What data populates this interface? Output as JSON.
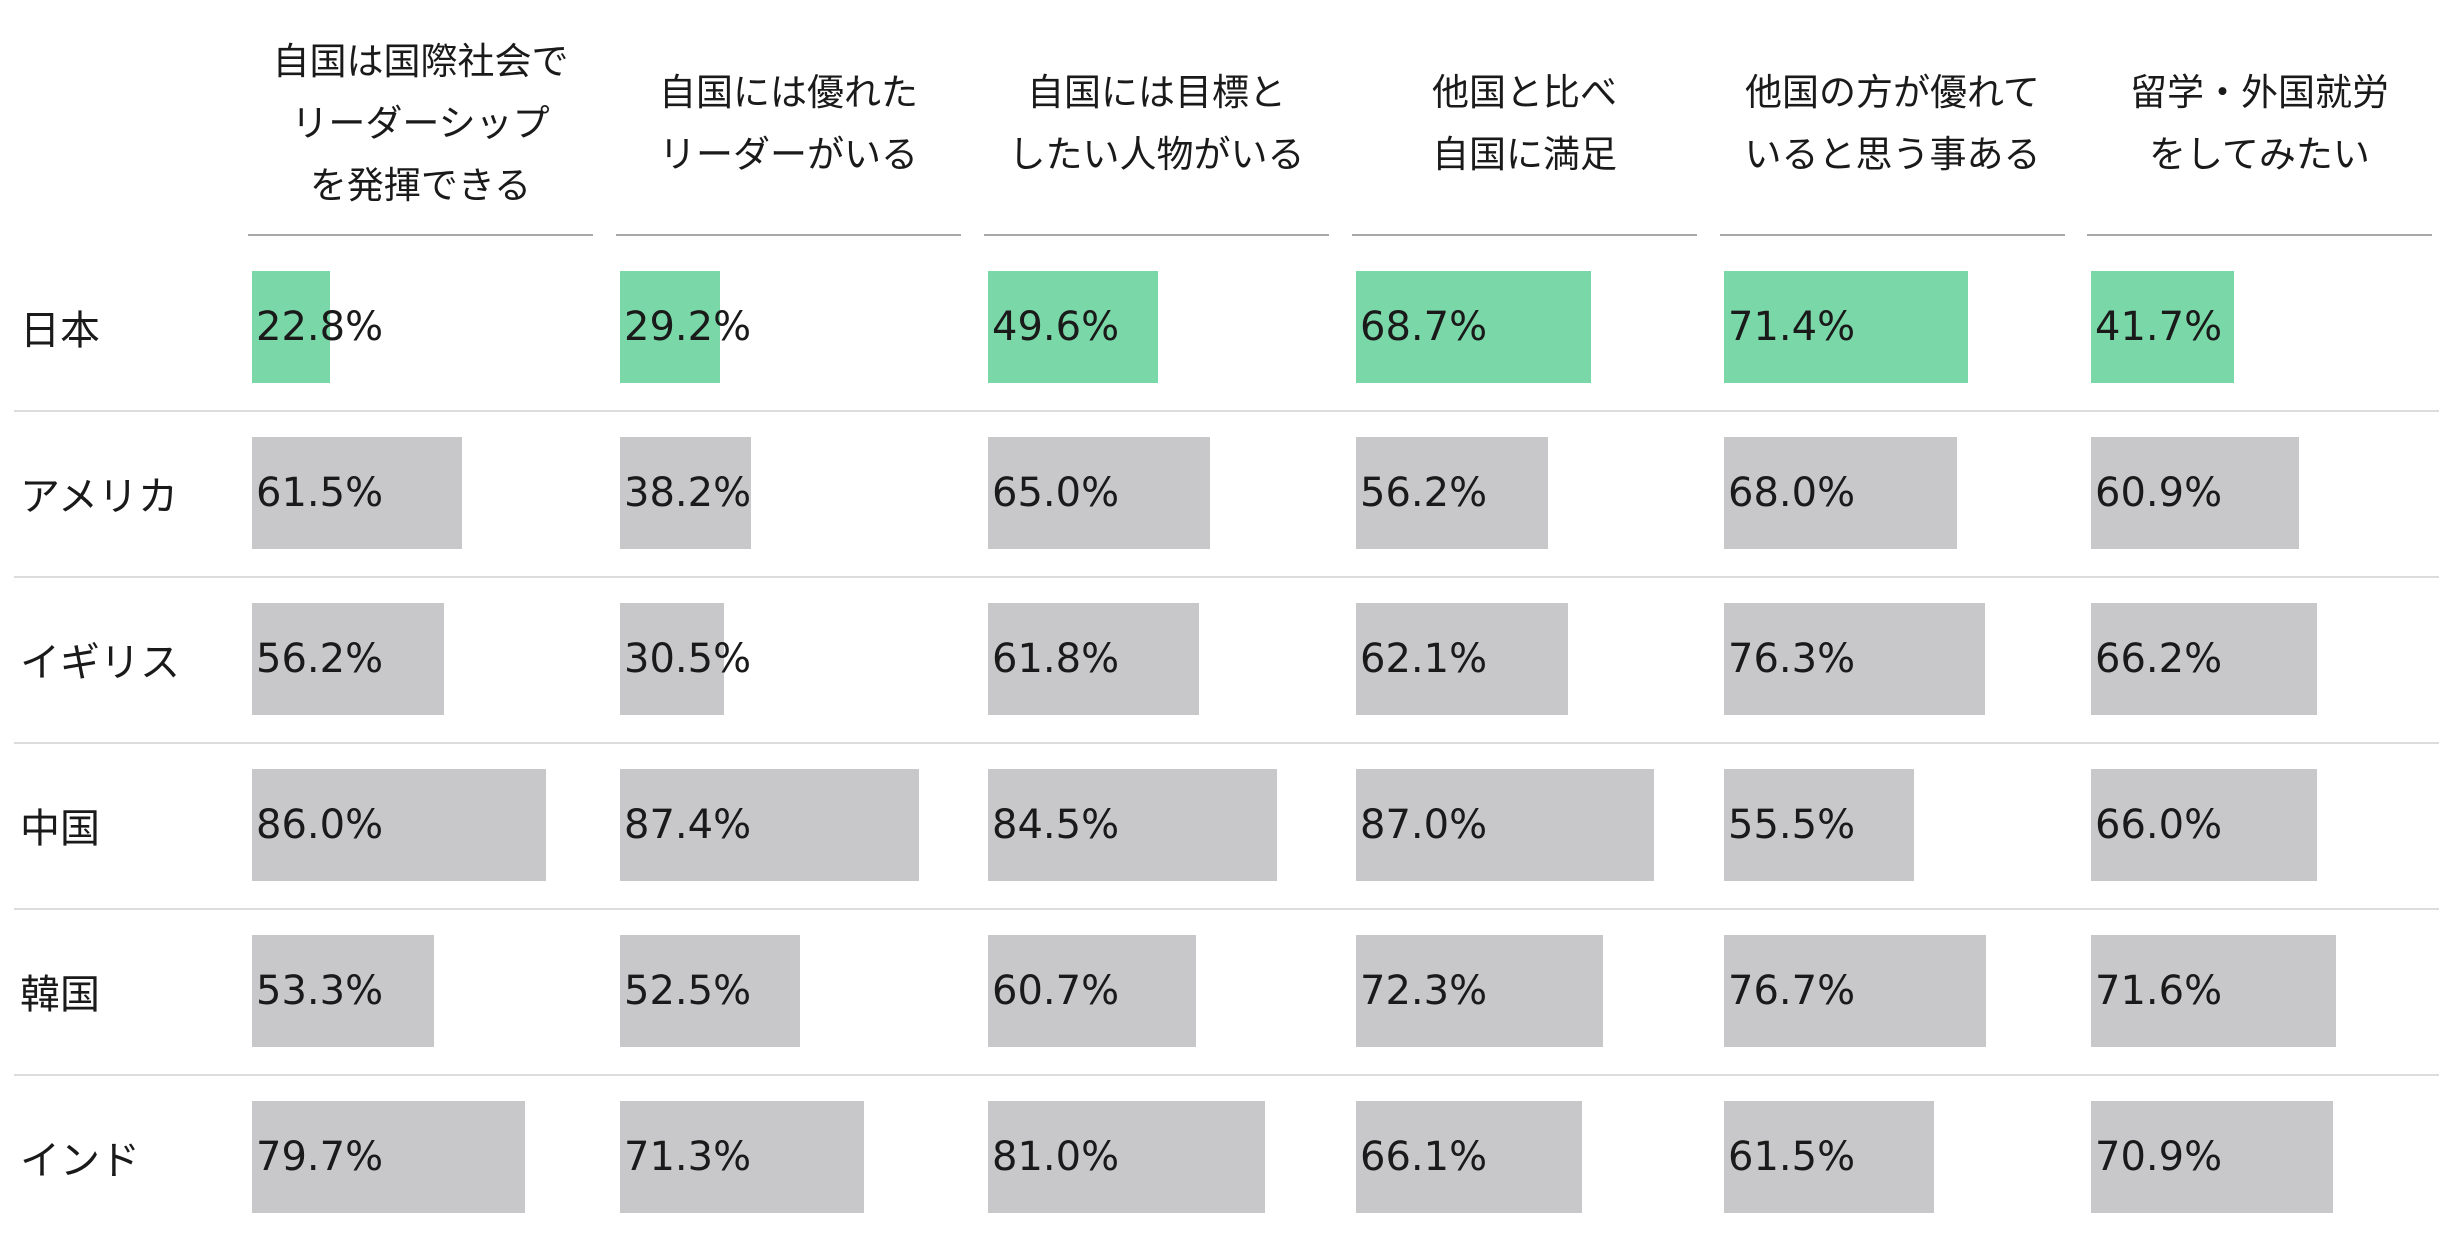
{
  "chart_data": {
    "type": "table",
    "title": "",
    "columns": [
      "自国は国際社会で\nリーダーシップ\nを発揮できる",
      "自国には優れた\nリーダーがいる",
      "自国には目標と\nしたい人物がいる",
      "他国と比べ\n自国に満足",
      "他国の方が優れて\nいると思う事ある",
      "留学・外国就労\nをしてみたい"
    ],
    "rows": [
      {
        "label": "日本",
        "values": [
          22.8,
          29.2,
          49.6,
          68.7,
          71.4,
          41.7
        ],
        "text": [
          "22.8%",
          "29.2%",
          "49.6%",
          "68.7%",
          "71.4%",
          "41.7%"
        ],
        "highlight": true
      },
      {
        "label": "アメリカ",
        "values": [
          61.5,
          38.2,
          65.0,
          56.2,
          68.0,
          60.9
        ],
        "text": [
          "61.5%",
          "38.2%",
          "65.0%",
          "56.2%",
          "68.0%",
          "60.9%"
        ],
        "highlight": false
      },
      {
        "label": "イギリス",
        "values": [
          56.2,
          30.5,
          61.8,
          62.1,
          76.3,
          66.2
        ],
        "text": [
          "56.2%",
          "30.5%",
          "61.8%",
          "62.1%",
          "76.3%",
          "66.2%"
        ],
        "highlight": false
      },
      {
        "label": "中国",
        "values": [
          86.0,
          87.4,
          84.5,
          87.0,
          55.5,
          66.0
        ],
        "text": [
          "86.0%",
          "87.4%",
          "84.5%",
          "87.0%",
          "55.5%",
          "66.0%"
        ],
        "highlight": false
      },
      {
        "label": "韓国",
        "values": [
          53.3,
          52.5,
          60.7,
          72.3,
          76.7,
          71.6
        ],
        "text": [
          "53.3%",
          "52.5%",
          "60.7%",
          "72.3%",
          "76.7%",
          "71.6%"
        ],
        "highlight": false
      },
      {
        "label": "インド",
        "values": [
          79.7,
          71.3,
          81.0,
          66.1,
          61.5,
          70.9
        ],
        "text": [
          "79.7%",
          "71.3%",
          "81.0%",
          "66.1%",
          "61.5%",
          "70.9%"
        ],
        "highlight": false
      }
    ],
    "value_range": [
      0,
      100
    ],
    "unit": "%",
    "colors": {
      "highlight_bar": "#7ad8a8",
      "default_bar": "#c8c8ca",
      "text": "#1a1a1a"
    }
  }
}
